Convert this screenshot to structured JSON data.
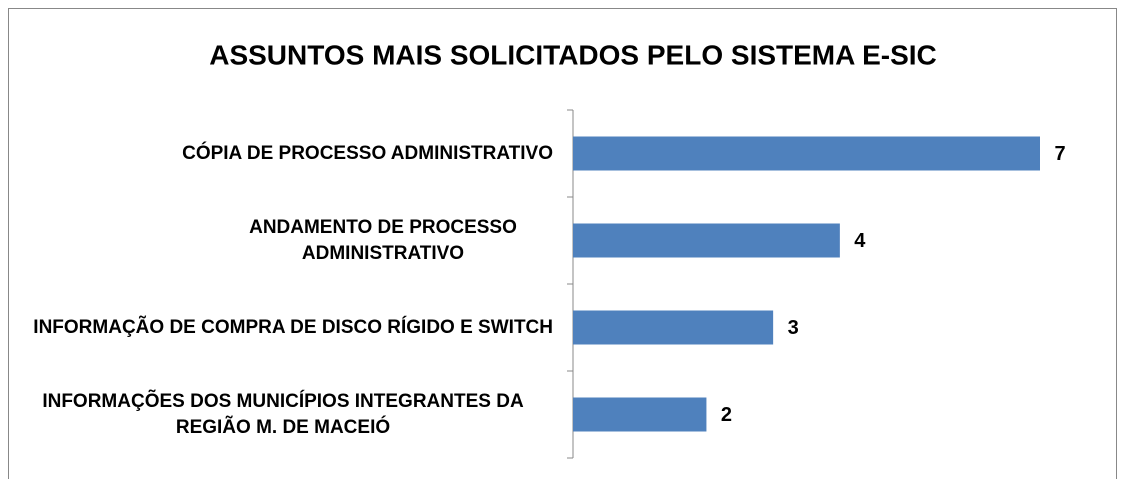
{
  "chart_data": {
    "type": "bar",
    "orientation": "horizontal",
    "title": "ASSUNTOS MAIS SOLICITADOS PELO SISTEMA E-SIC",
    "categories": [
      "CÓPIA DE PROCESSO ADMINISTRATIVO",
      "ANDAMENTO DE PROCESSO ADMINISTRATIVO",
      "INFORMAÇÃO DE COMPRA DE DISCO RÍGIDO E SWITCH",
      "INFORMAÇÕES DOS MUNICÍPIOS INTEGRANTES DA REGIÃO M. DE MACEIÓ"
    ],
    "values": [
      7,
      4,
      3,
      2
    ],
    "color": "#4f81bd",
    "grid": false
  }
}
